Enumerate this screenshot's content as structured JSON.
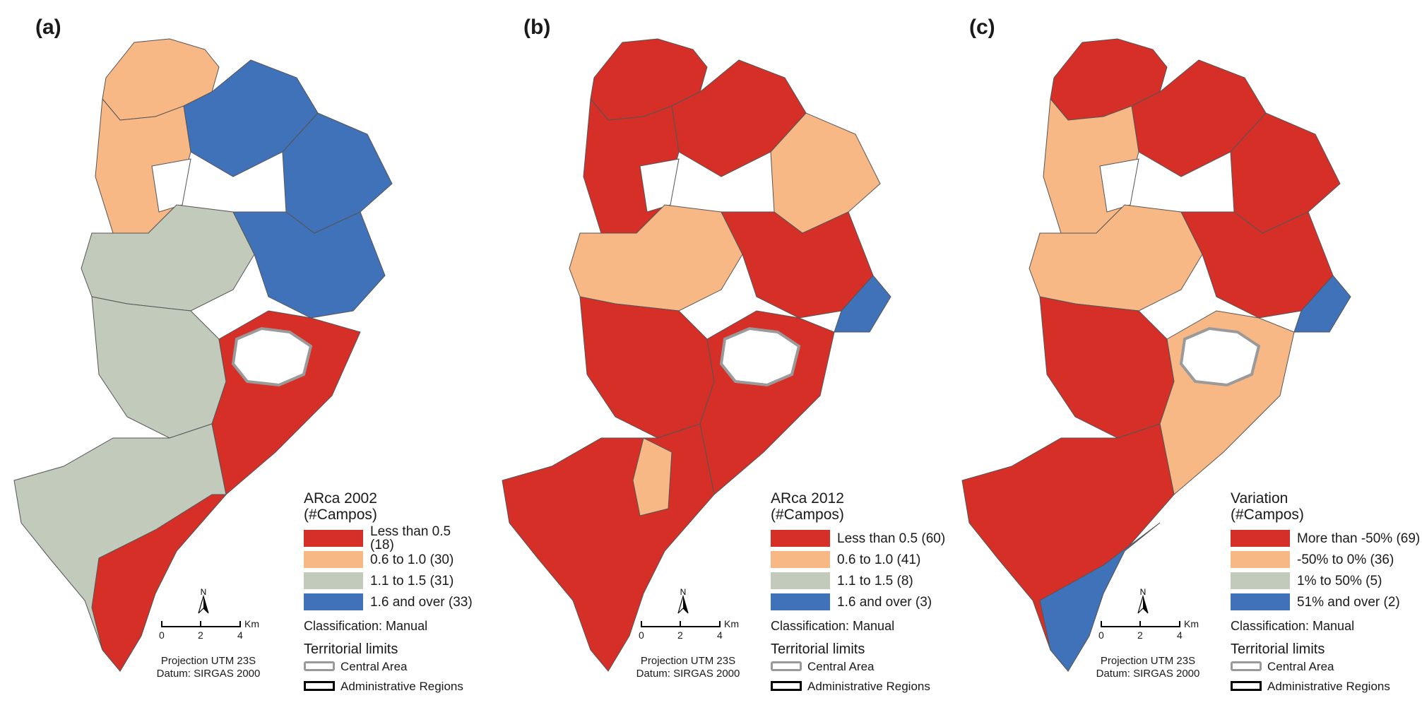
{
  "colors": {
    "red": "#d62f27",
    "orange": "#f7b886",
    "gray": "#c2cbbb",
    "blue": "#3f72b8",
    "central": "#9a9a9a",
    "admin": "#000000"
  },
  "panels": [
    {
      "label": "(a)",
      "legend_title": "ARca 2002",
      "legend_subtitle": "(#Campos)",
      "classes": [
        {
          "label": "Less than 0.5 (18)",
          "color": "#d62f27"
        },
        {
          "label": "0.6 to 1.0 (30)",
          "color": "#f7b886"
        },
        {
          "label": "1.1 to 1.5 (31)",
          "color": "#c2cbbb"
        },
        {
          "label": "1.6 and over (33)",
          "color": "#3f72b8"
        }
      ]
    },
    {
      "label": "(b)",
      "legend_title": "ARca 2012",
      "legend_subtitle": "(#Campos)",
      "classes": [
        {
          "label": "Less than 0.5 (60)",
          "color": "#d62f27"
        },
        {
          "label": "0.6 to 1.0 (41)",
          "color": "#f7b886"
        },
        {
          "label": "1.1 to 1.5 (8)",
          "color": "#c2cbbb"
        },
        {
          "label": "1.6 and over (3)",
          "color": "#3f72b8"
        }
      ]
    },
    {
      "label": "(c)",
      "legend_title": "Variation",
      "legend_subtitle": "(#Campos)",
      "classes": [
        {
          "label": "More than -50% (69)",
          "color": "#d62f27"
        },
        {
          "label": "-50% to 0% (36)",
          "color": "#f7b886"
        },
        {
          "label": "1% to 50% (5)",
          "color": "#c2cbbb"
        },
        {
          "label": "51% and over (2)",
          "color": "#3f72b8"
        }
      ]
    }
  ],
  "common": {
    "classification": "Classification: Manual",
    "territorial_title": "Territorial limits",
    "central_area": "Central Area",
    "admin_regions": "Administrative Regions",
    "projection": "Projection UTM 23S",
    "datum": "Datum: SIRGAS 2000",
    "north": "N",
    "scale_ticks": [
      "0",
      "2",
      "4"
    ],
    "scale_unit": "Km"
  }
}
